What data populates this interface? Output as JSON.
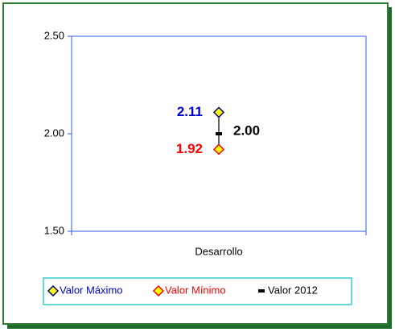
{
  "chart_data": {
    "type": "line",
    "categories": [
      "Desarrollo"
    ],
    "series": [
      {
        "name": "Valor Máximo",
        "color": "#000080",
        "fill": "#ffff00",
        "marker": "diamond",
        "label_color": "#0000cc",
        "values": [
          2.11
        ],
        "value_labels": [
          "2.11"
        ]
      },
      {
        "name": "Valor Mínimo",
        "color": "#ff0000",
        "fill": "#ffff00",
        "marker": "diamond",
        "label_color": "#ff0000",
        "values": [
          1.92
        ],
        "value_labels": [
          "1.92"
        ]
      },
      {
        "name": "Valor 2012",
        "color": "#000000",
        "fill": "#000000",
        "marker": "dash",
        "label_color": "#000000",
        "values": [
          2.0
        ],
        "value_labels": [
          "2.00"
        ]
      }
    ],
    "ylim": [
      1.5,
      2.5
    ],
    "yticks": [
      {
        "value": 1.5,
        "label": "1.50"
      },
      {
        "value": 2.0,
        "label": "2.00"
      },
      {
        "value": 2.5,
        "label": "2.50"
      }
    ],
    "hi_low_lines": true,
    "grid": false,
    "legend": "bottom"
  }
}
